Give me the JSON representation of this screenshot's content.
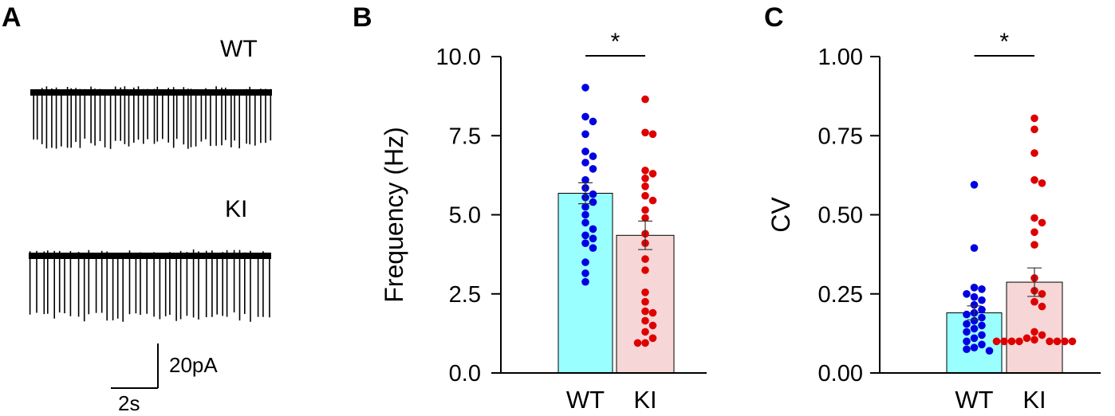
{
  "panel_a": {
    "letter": "A",
    "trace_labels": [
      "WT",
      "KI"
    ],
    "scale_bar": {
      "amplitude_label": "20pA",
      "time_label": "2s"
    }
  },
  "chart_data": [
    {
      "type": "bar",
      "panel": "B",
      "categories": [
        "WT",
        "KI"
      ],
      "values": [
        5.68,
        4.35
      ],
      "sem": [
        0.33,
        0.45
      ],
      "ylabel": "Frequency (Hz)",
      "xlabel": "",
      "ylim": [
        0,
        10
      ],
      "yticks": [
        "0.0",
        "2.5",
        "5.0",
        "7.5",
        "10.0"
      ],
      "significance": "*",
      "bar_colors": [
        "#99ffff",
        "#f6d6d6"
      ],
      "points": [
        {
          "category": "WT",
          "color": "#0000e0",
          "values": [
            9.02,
            8.1,
            7.95,
            7.55,
            7.0,
            6.85,
            6.65,
            6.45,
            6.1,
            5.85,
            5.65,
            5.55,
            5.4,
            5.25,
            5.0,
            4.75,
            4.55,
            4.35,
            4.25,
            4.1,
            3.95,
            3.5,
            3.15,
            2.88
          ]
        },
        {
          "category": "KI",
          "color": "#dd0000",
          "values": [
            8.65,
            7.6,
            7.55,
            6.4,
            6.3,
            6.15,
            5.9,
            5.6,
            5.45,
            5.15,
            4.9,
            4.4,
            4.1,
            3.6,
            3.25,
            2.55,
            2.25,
            1.95,
            1.9,
            1.65,
            1.5,
            1.3,
            1.1,
            0.95,
            0.95
          ]
        }
      ]
    },
    {
      "type": "bar",
      "panel": "C",
      "categories": [
        "WT",
        "KI"
      ],
      "values": [
        0.19,
        0.287
      ],
      "sem": [
        0.022,
        0.045
      ],
      "ylabel": "CV",
      "xlabel": "",
      "ylim": [
        0,
        1
      ],
      "yticks": [
        "0.00",
        "0.25",
        "0.50",
        "0.75",
        "1.00"
      ],
      "significance": "*",
      "bar_colors": [
        "#99ffff",
        "#f6d6d6"
      ],
      "points": [
        {
          "category": "WT",
          "color": "#0000e0",
          "values": [
            0.595,
            0.395,
            0.27,
            0.265,
            0.25,
            0.24,
            0.23,
            0.215,
            0.2,
            0.19,
            0.185,
            0.175,
            0.165,
            0.155,
            0.15,
            0.14,
            0.13,
            0.12,
            0.11,
            0.1,
            0.09,
            0.08,
            0.075,
            0.07
          ]
        },
        {
          "category": "KI",
          "color": "#dd0000",
          "values": [
            0.805,
            0.77,
            0.695,
            0.61,
            0.6,
            0.49,
            0.475,
            0.445,
            0.405,
            0.3,
            0.26,
            0.25,
            0.225,
            0.21,
            0.13,
            0.12,
            0.11,
            0.105,
            0.1,
            0.1,
            0.1,
            0.1,
            0.1,
            0.1,
            0.1,
            0.1
          ]
        }
      ]
    }
  ]
}
